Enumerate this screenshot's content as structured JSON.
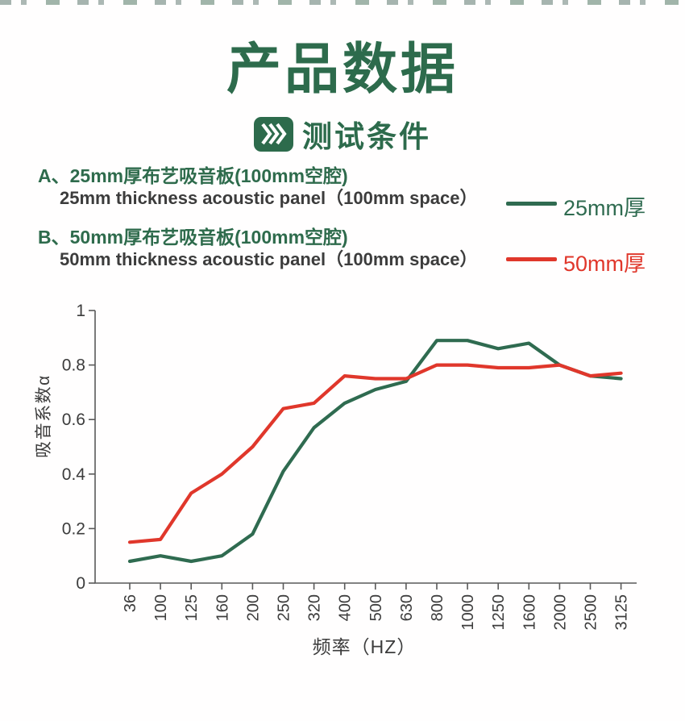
{
  "header": {
    "title": "产品数据",
    "subtitle": "测试条件"
  },
  "panels": [
    {
      "label_cn": "A、25mm厚布艺吸音板(100mm空腔)",
      "label_en": "25mm thickness acoustic panel（100mm space）"
    },
    {
      "label_cn": "B、50mm厚布艺吸音板(100mm空腔)",
      "label_en": "50mm thickness acoustic panel（100mm space）"
    }
  ],
  "legend": [
    {
      "label": "25mm厚",
      "color": "#2f6b50"
    },
    {
      "label": "50mm厚",
      "color": "#e0372b"
    }
  ],
  "chart_data": {
    "type": "line",
    "categories": [
      "36",
      "100",
      "125",
      "160",
      "200",
      "250",
      "320",
      "400",
      "500",
      "630",
      "800",
      "1000",
      "1250",
      "1600",
      "2000",
      "2500",
      "3125"
    ],
    "series": [
      {
        "name": "25mm厚",
        "color": "#2f6b50",
        "values": [
          0.08,
          0.1,
          0.08,
          0.1,
          0.18,
          0.41,
          0.57,
          0.66,
          0.71,
          0.74,
          0.89,
          0.89,
          0.86,
          0.88,
          0.8,
          0.76,
          0.75
        ]
      },
      {
        "name": "50mm厚",
        "color": "#e0372b",
        "values": [
          0.15,
          0.16,
          0.33,
          0.4,
          0.5,
          0.64,
          0.66,
          0.76,
          0.75,
          0.75,
          0.8,
          0.8,
          0.79,
          0.79,
          0.8,
          0.76,
          0.77
        ]
      }
    ],
    "title": "",
    "xlabel": "频率（HZ）",
    "ylabel": "吸音系数α",
    "ylim": [
      0,
      1
    ],
    "yticks": [
      "0",
      "0.2",
      "0.4",
      "0.6",
      "0.8",
      "1"
    ],
    "grid": false,
    "legend_position": "top-right",
    "axis_color": "#595959",
    "tick_label_color": "#3c3c3c"
  }
}
